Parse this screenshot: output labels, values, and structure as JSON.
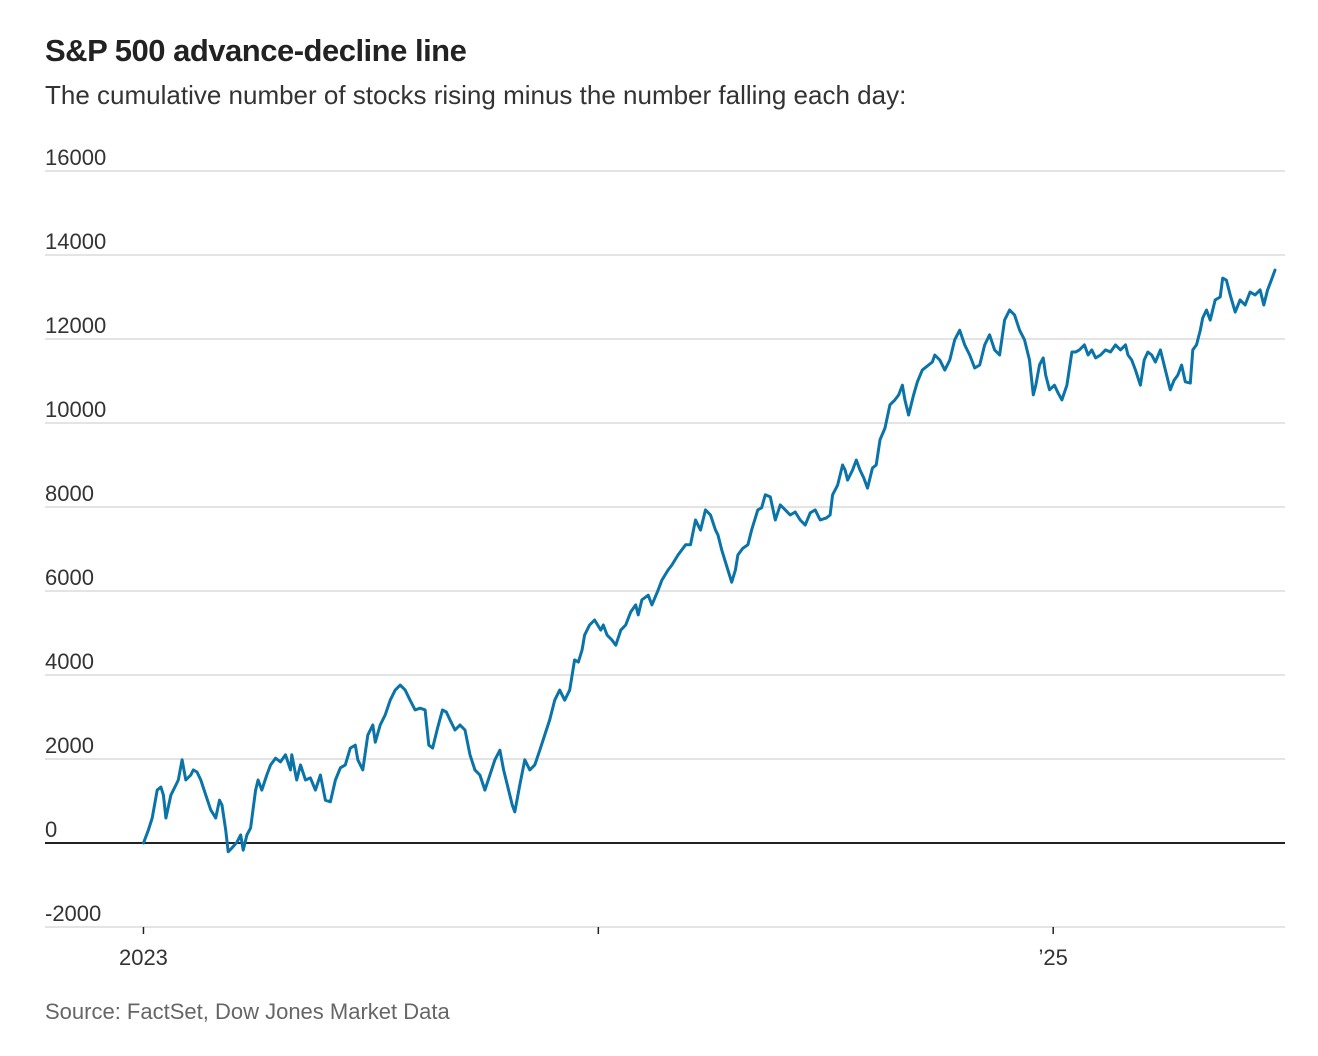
{
  "chart_data": {
    "type": "line",
    "title": "S&P 500 advance-decline line",
    "subtitle": "The cumulative number of stocks rising minus the number falling each day:",
    "source": "Source: FactSet, Dow Jones Market Data",
    "xlabel": "",
    "ylabel": "",
    "x_units": "days since 2023-01-01",
    "xlim": [
      -79,
      916
    ],
    "ylim": [
      -2000,
      16000
    ],
    "grid": true,
    "y_ticks": [
      -2000,
      0,
      2000,
      4000,
      6000,
      8000,
      10000,
      12000,
      14000,
      16000
    ],
    "y_tick_labels": [
      "-2000",
      "0",
      "2000",
      "4000",
      "6000",
      "8000",
      "10000",
      "12000",
      "14000",
      "16000"
    ],
    "x_ticks": [
      {
        "value": 0,
        "label": "2023"
      },
      {
        "value": 365,
        "label": ""
      },
      {
        "value": 730,
        "label": "’25"
      }
    ],
    "line_color": "#0a73a8",
    "series": [
      {
        "name": "Advance-decline line",
        "x": [
          0,
          4,
          7,
          11,
          14,
          16,
          18,
          22,
          26,
          28,
          31,
          34,
          38,
          40,
          43,
          46,
          50,
          54,
          58,
          61,
          63,
          66,
          68,
          71,
          75,
          78,
          80,
          83,
          86,
          90,
          92,
          95,
          99,
          102,
          106,
          110,
          114,
          118,
          119,
          123,
          126,
          130,
          134,
          138,
          142,
          146,
          150,
          154,
          158,
          162,
          166,
          170,
          172,
          176,
          180,
          184,
          186,
          190,
          194,
          198,
          202,
          206,
          210,
          214,
          218,
          222,
          226,
          229,
          232,
          236,
          240,
          243,
          246,
          250,
          254,
          258,
          262,
          266,
          270,
          274,
          278,
          282,
          286,
          289,
          293,
          296,
          298,
          302,
          306,
          310,
          314,
          318,
          322,
          326,
          330,
          334,
          338,
          342,
          346,
          349,
          352,
          354,
          358,
          362,
          367,
          369,
          372,
          376,
          379,
          383,
          387,
          391,
          395,
          397,
          400,
          405,
          408,
          413,
          416,
          421,
          424,
          429,
          435,
          439,
          443,
          447,
          451,
          455,
          459,
          461,
          464,
          469,
          472,
          475,
          477,
          481,
          485,
          488,
          493,
          496,
          499,
          503,
          507,
          511,
          515,
          519,
          523,
          527,
          531,
          535,
          539,
          543,
          548,
          551,
          553,
          557,
          561,
          563,
          565,
          569,
          572,
          575,
          578,
          581,
          585,
          588,
          591,
          595,
          599,
          603,
          606,
          609,
          611,
          614,
          618,
          621,
          625,
          630,
          633,
          635,
          639,
          643,
          647,
          651,
          655,
          659,
          663,
          667,
          671,
          675,
          679,
          683,
          687,
          691,
          695,
          699,
          703,
          707,
          711,
          714,
          716,
          719,
          722,
          724,
          727,
          731,
          734,
          737,
          741,
          745,
          748,
          751,
          755,
          758,
          761,
          764,
          768,
          772,
          776,
          780,
          784,
          788,
          790,
          793,
          796,
          800,
          803,
          806,
          809,
          812,
          816,
          820,
          824,
          827,
          830,
          833,
          836,
          840,
          842,
          845,
          848,
          850,
          853,
          856,
          860,
          864,
          866,
          869,
          872,
          876,
          880,
          884,
          888,
          892,
          896,
          899,
          902,
          905,
          908
        ],
        "y": [
          0,
          310,
          595,
          1260,
          1330,
          1140,
          595,
          1140,
          1380,
          1500,
          1980,
          1500,
          1620,
          1740,
          1690,
          1500,
          1140,
          790,
          595,
          1020,
          900,
          310,
          -210,
          -120,
          20,
          190,
          -170,
          190,
          360,
          1260,
          1500,
          1260,
          1620,
          1860,
          2020,
          1930,
          2100,
          1740,
          2100,
          1500,
          1860,
          1500,
          1550,
          1260,
          1620,
          1020,
          980,
          1500,
          1790,
          1860,
          2260,
          2330,
          1980,
          1740,
          2570,
          2810,
          2400,
          2810,
          3050,
          3400,
          3640,
          3760,
          3640,
          3400,
          3170,
          3210,
          3170,
          2330,
          2260,
          2740,
          3170,
          3120,
          2930,
          2690,
          2810,
          2690,
          2100,
          1740,
          1620,
          1260,
          1620,
          1980,
          2210,
          1740,
          1260,
          900,
          740,
          1380,
          1980,
          1740,
          1860,
          2210,
          2570,
          2930,
          3400,
          3640,
          3400,
          3640,
          4360,
          4310,
          4600,
          4950,
          5190,
          5310,
          5070,
          5190,
          4950,
          4830,
          4710,
          5070,
          5190,
          5500,
          5670,
          5430,
          5790,
          5900,
          5670,
          6020,
          6260,
          6500,
          6620,
          6860,
          7100,
          7100,
          7690,
          7450,
          7930,
          7810,
          7450,
          7330,
          6980,
          6500,
          6210,
          6500,
          6860,
          7020,
          7100,
          7450,
          7930,
          7980,
          8290,
          8240,
          7690,
          8050,
          7930,
          7810,
          7880,
          7690,
          7570,
          7860,
          7930,
          7690,
          7740,
          7810,
          8290,
          8520,
          9000,
          8880,
          8640,
          8880,
          9120,
          8880,
          8690,
          8450,
          8930,
          9000,
          9600,
          9880,
          10430,
          10550,
          10670,
          10900,
          10550,
          10190,
          10670,
          10980,
          11260,
          11380,
          11450,
          11620,
          11500,
          11260,
          11500,
          11980,
          12210,
          11860,
          11620,
          11310,
          11380,
          11860,
          12100,
          11740,
          11620,
          12450,
          12690,
          12570,
          12210,
          11980,
          11500,
          10670,
          10900,
          11380,
          11550,
          11140,
          10790,
          10900,
          10710,
          10550,
          10900,
          11690,
          11690,
          11740,
          11860,
          11620,
          11740,
          11550,
          11620,
          11740,
          11690,
          11860,
          11740,
          11860,
          11620,
          11500,
          11260,
          10900,
          11500,
          11690,
          11620,
          11450,
          11740,
          11260,
          10790,
          11020,
          11140,
          11380,
          10980,
          10950,
          11740,
          11860,
          12210,
          12500,
          12690,
          12450,
          12930,
          13000,
          13450,
          13400,
          13050,
          12640,
          12930,
          12810,
          13120,
          13050,
          13170,
          12810,
          13170,
          13400,
          13640
        ]
      }
    ]
  }
}
